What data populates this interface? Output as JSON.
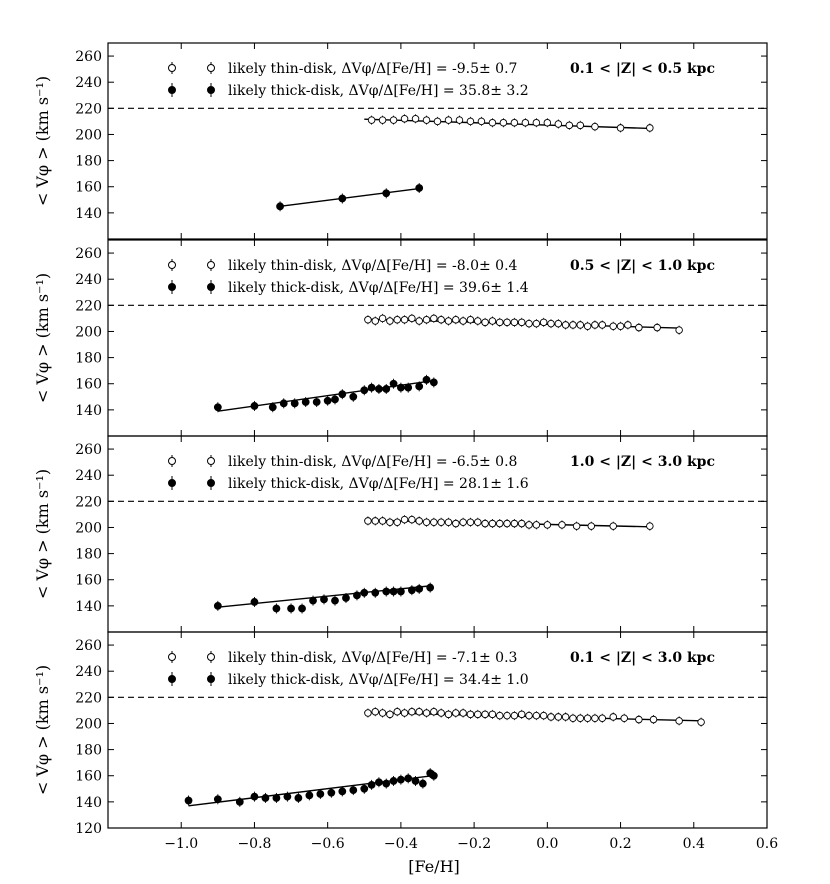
{
  "chart_data": {
    "type": "scatter",
    "xlabel": "[Fe/H]",
    "ylabel": "< Vφ > (km s⁻¹)",
    "xlim": [
      -1.2,
      0.6
    ],
    "ylim": [
      120,
      270
    ],
    "x_ticks": [
      -1.0,
      -0.8,
      -0.6,
      -0.4,
      -0.2,
      0.0,
      0.2,
      0.4,
      0.6
    ],
    "x_tick_labels": [
      "−1.0",
      "−0.8",
      "−0.6",
      "−0.4",
      "−0.2",
      "0.0",
      "0.2",
      "0.4",
      "0.6"
    ],
    "y_ticks": [
      120,
      140,
      160,
      180,
      200,
      220,
      240,
      260
    ],
    "y_tick_labels": [
      "120",
      "140",
      "160",
      "180",
      "200",
      "220",
      "240",
      "260"
    ],
    "reference_line": 220,
    "panels": [
      {
        "zrange": "0.1 < |Z| < 0.5 kpc",
        "thin_label": "likely thin-disk, ΔVφ/Δ[Fe/H] = -9.5± 0.7",
        "thick_label": "likely thick-disk, ΔVφ/Δ[Fe/H] = 35.8± 3.2",
        "thin_x": [
          -0.48,
          -0.45,
          -0.42,
          -0.39,
          -0.36,
          -0.33,
          -0.3,
          -0.27,
          -0.24,
          -0.21,
          -0.18,
          -0.15,
          -0.12,
          -0.09,
          -0.06,
          -0.03,
          0.0,
          0.03,
          0.06,
          0.09,
          0.13,
          0.2,
          0.28
        ],
        "thin_y": [
          211,
          211,
          211,
          212,
          212,
          211,
          210,
          211,
          211,
          210,
          210,
          209,
          209,
          209,
          209,
          209,
          209,
          208,
          207,
          207,
          206,
          205,
          205
        ],
        "thin_fit": [
          [
            -0.5,
            211.7
          ],
          [
            0.28,
            204.6
          ]
        ],
        "thick_x": [
          -0.73,
          -0.56,
          -0.44,
          -0.35
        ],
        "thick_y": [
          145,
          151,
          155,
          159
        ],
        "thick_fit": [
          [
            -0.73,
            145.0
          ],
          [
            -0.35,
            158.6
          ]
        ]
      },
      {
        "zrange": "0.5 < |Z| < 1.0 kpc",
        "thin_label": "likely thin-disk, ΔVφ/Δ[Fe/H] = -8.0± 0.4",
        "thick_label": "likely thick-disk, ΔVφ/Δ[Fe/H] = 39.6± 1.4",
        "thin_x": [
          -0.49,
          -0.47,
          -0.45,
          -0.43,
          -0.41,
          -0.39,
          -0.37,
          -0.35,
          -0.33,
          -0.31,
          -0.29,
          -0.27,
          -0.25,
          -0.23,
          -0.21,
          -0.19,
          -0.17,
          -0.15,
          -0.13,
          -0.11,
          -0.09,
          -0.07,
          -0.05,
          -0.03,
          -0.01,
          0.01,
          0.03,
          0.05,
          0.07,
          0.09,
          0.11,
          0.13,
          0.15,
          0.18,
          0.2,
          0.22,
          0.25,
          0.3,
          0.36
        ],
        "thin_y": [
          209,
          208,
          210,
          208,
          209,
          209,
          210,
          208,
          209,
          210,
          209,
          208,
          209,
          208,
          209,
          208,
          207,
          208,
          207,
          207,
          207,
          207,
          206,
          206,
          207,
          206,
          206,
          205,
          205,
          205,
          204,
          205,
          205,
          204,
          204,
          205,
          203,
          203,
          201
        ],
        "thin_fit": [
          [
            -0.5,
            209.5
          ],
          [
            0.36,
            202.6
          ]
        ],
        "thick_x": [
          -0.9,
          -0.8,
          -0.75,
          -0.72,
          -0.69,
          -0.66,
          -0.63,
          -0.6,
          -0.58,
          -0.56,
          -0.53,
          -0.5,
          -0.48,
          -0.46,
          -0.44,
          -0.42,
          -0.4,
          -0.38,
          -0.35,
          -0.33,
          -0.31
        ],
        "thick_y": [
          142,
          143,
          142,
          145,
          145,
          146,
          146,
          147,
          148,
          152,
          150,
          155,
          157,
          156,
          156,
          160,
          157,
          157,
          158,
          163,
          161
        ],
        "thick_fit": [
          [
            -0.9,
            139.0
          ],
          [
            -0.31,
            162.4
          ]
        ]
      },
      {
        "zrange": "1.0 < |Z| < 3.0 kpc",
        "thin_label": "likely thin-disk, ΔVφ/Δ[Fe/H] = -6.5± 0.8",
        "thick_label": "likely thick-disk, ΔVφ/Δ[Fe/H] = 28.1± 1.6",
        "thin_x": [
          -0.49,
          -0.47,
          -0.45,
          -0.43,
          -0.41,
          -0.39,
          -0.37,
          -0.35,
          -0.33,
          -0.31,
          -0.29,
          -0.27,
          -0.25,
          -0.23,
          -0.21,
          -0.19,
          -0.17,
          -0.15,
          -0.13,
          -0.11,
          -0.09,
          -0.07,
          -0.05,
          -0.03,
          0.0,
          0.04,
          0.08,
          0.12,
          0.18,
          0.28
        ],
        "thin_y": [
          205,
          205,
          205,
          204,
          204,
          206,
          206,
          205,
          204,
          204,
          204,
          204,
          203,
          204,
          204,
          204,
          203,
          203,
          203,
          203,
          203,
          203,
          202,
          202,
          202,
          202,
          201,
          201,
          201,
          201
        ],
        "thin_fit": [
          [
            -0.5,
            205.6
          ],
          [
            0.28,
            200.5
          ]
        ],
        "thick_x": [
          -0.9,
          -0.8,
          -0.74,
          -0.7,
          -0.67,
          -0.64,
          -0.61,
          -0.58,
          -0.55,
          -0.52,
          -0.5,
          -0.47,
          -0.44,
          -0.42,
          -0.4,
          -0.37,
          -0.35,
          -0.32
        ],
        "thick_y": [
          140,
          143,
          138,
          138,
          138,
          144,
          145,
          144,
          146,
          148,
          150,
          150,
          151,
          151,
          151,
          152,
          153,
          154
        ],
        "thick_fit": [
          [
            -0.9,
            139.0
          ],
          [
            -0.32,
            155.3
          ]
        ]
      },
      {
        "zrange": "0.1 < |Z| < 3.0 kpc",
        "thin_label": "likely thin-disk, ΔVφ/Δ[Fe/H] = -7.1± 0.3",
        "thick_label": "likely thick-disk, ΔVφ/Δ[Fe/H] = 34.4± 1.0",
        "thin_x": [
          -0.49,
          -0.47,
          -0.45,
          -0.43,
          -0.41,
          -0.39,
          -0.37,
          -0.35,
          -0.33,
          -0.31,
          -0.29,
          -0.27,
          -0.25,
          -0.23,
          -0.21,
          -0.19,
          -0.17,
          -0.15,
          -0.13,
          -0.11,
          -0.09,
          -0.07,
          -0.05,
          -0.03,
          -0.01,
          0.01,
          0.03,
          0.05,
          0.07,
          0.09,
          0.11,
          0.13,
          0.15,
          0.18,
          0.21,
          0.25,
          0.29,
          0.36,
          0.42
        ],
        "thin_y": [
          208,
          209,
          208,
          207,
          209,
          208,
          209,
          209,
          208,
          209,
          208,
          207,
          208,
          208,
          207,
          207,
          207,
          207,
          206,
          206,
          206,
          207,
          206,
          206,
          206,
          205,
          205,
          205,
          204,
          204,
          204,
          204,
          204,
          205,
          204,
          203,
          203,
          202,
          201
        ],
        "thin_fit": [
          [
            -0.5,
            208.5
          ],
          [
            0.42,
            202.0
          ]
        ],
        "thick_x": [
          -0.98,
          -0.9,
          -0.84,
          -0.8,
          -0.77,
          -0.74,
          -0.71,
          -0.68,
          -0.65,
          -0.62,
          -0.59,
          -0.56,
          -0.53,
          -0.5,
          -0.48,
          -0.46,
          -0.44,
          -0.42,
          -0.4,
          -0.38,
          -0.36,
          -0.34,
          -0.32,
          -0.31
        ],
        "thick_y": [
          141,
          142,
          140,
          144,
          143,
          143,
          144,
          143,
          145,
          146,
          147,
          148,
          149,
          150,
          153,
          155,
          154,
          156,
          157,
          158,
          156,
          154,
          162,
          160
        ],
        "thick_fit": [
          [
            -0.98,
            137.0
          ],
          [
            -0.31,
            160.1
          ]
        ]
      }
    ]
  }
}
